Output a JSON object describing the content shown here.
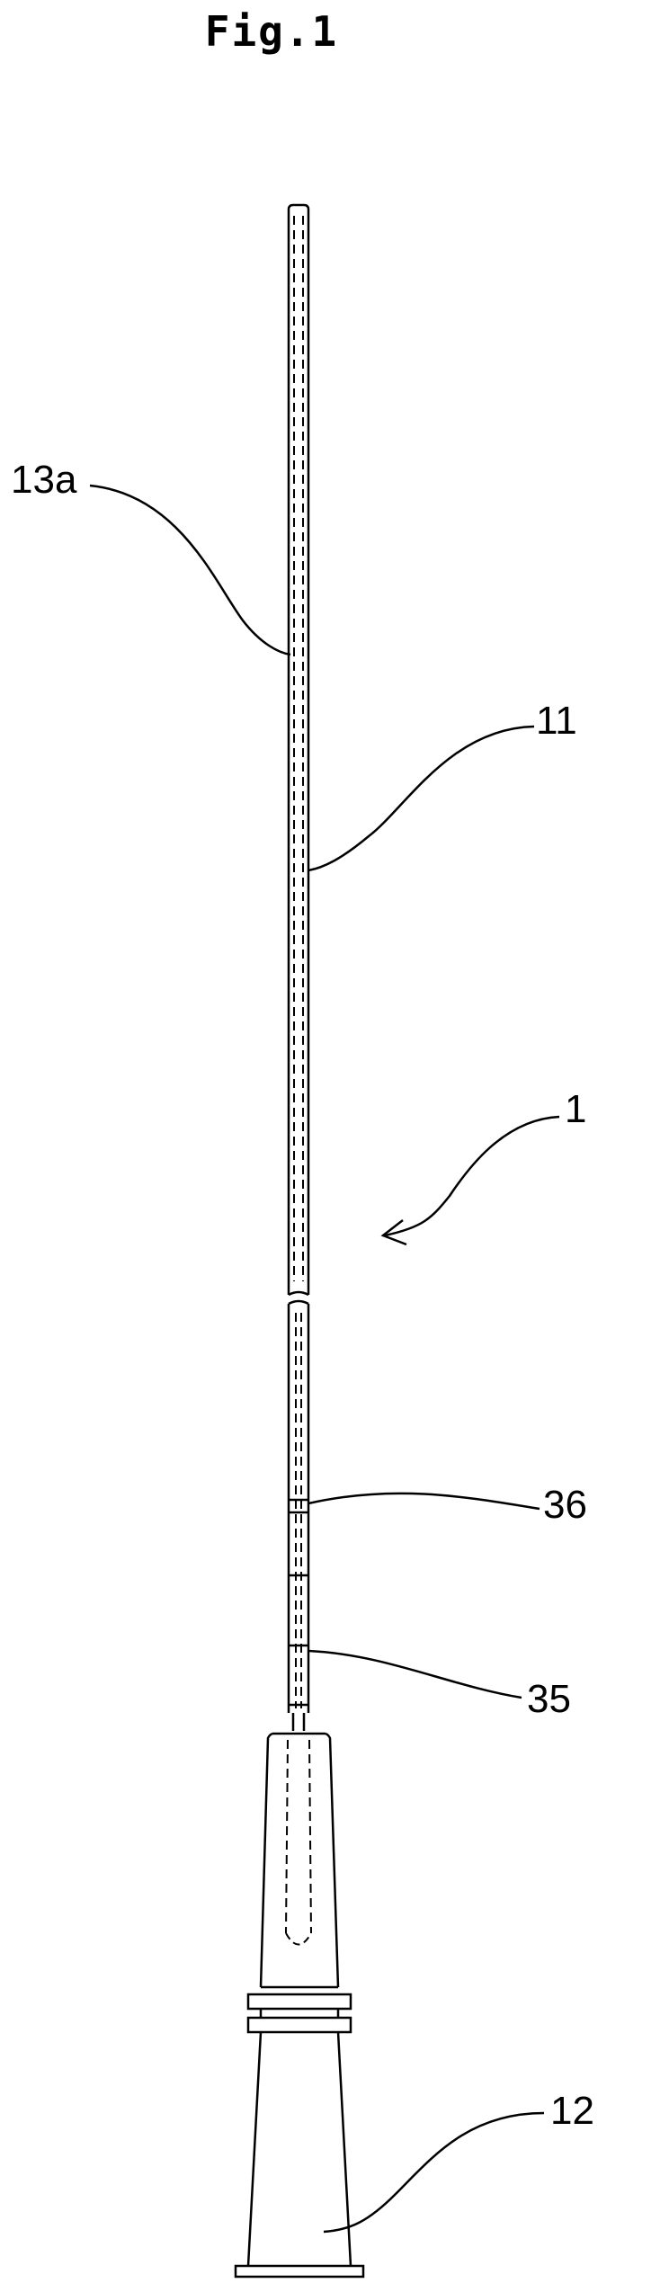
{
  "figure": {
    "title": "Fig.1",
    "labels": {
      "needle_marker": "13a",
      "inner_tube": "11",
      "assembly": "1",
      "mark_upper": "36",
      "mark_lower": "35",
      "hub": "12"
    }
  },
  "colors": {
    "line": "#000000",
    "background": "#ffffff"
  }
}
